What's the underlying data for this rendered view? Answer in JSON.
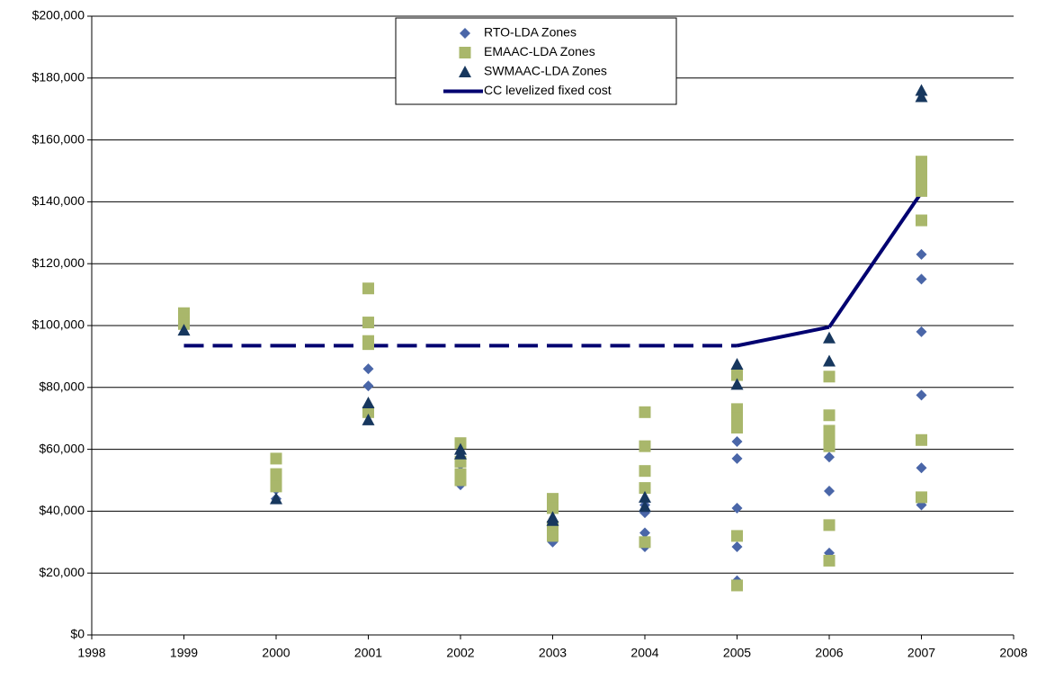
{
  "chart_data": {
    "type": "scatter",
    "xlim": [
      1998,
      2008
    ],
    "xticks": [
      1998,
      1999,
      2000,
      2001,
      2002,
      2003,
      2004,
      2005,
      2006,
      2007,
      2008
    ],
    "ylim": [
      0,
      200000
    ],
    "yticks": [
      {
        "value": 0,
        "label": "$0"
      },
      {
        "value": 20000,
        "label": "$20,000"
      },
      {
        "value": 40000,
        "label": "$40,000"
      },
      {
        "value": 60000,
        "label": "$60,000"
      },
      {
        "value": 80000,
        "label": "$80,000"
      },
      {
        "value": 100000,
        "label": "$100,000"
      },
      {
        "value": 120000,
        "label": "$120,000"
      },
      {
        "value": 140000,
        "label": "$140,000"
      },
      {
        "value": 160000,
        "label": "$160,000"
      },
      {
        "value": 180000,
        "label": "$180,000"
      },
      {
        "value": 200000,
        "label": "$200,000"
      }
    ],
    "grid": true,
    "legend": "top-center",
    "series": [
      {
        "name": "RTO-LDA Zones",
        "marker": "diamond",
        "color": "#4a66a8",
        "x": [
          1999,
          2000,
          2000,
          2001,
          2001,
          2001,
          2002,
          2002,
          2003,
          2003,
          2004,
          2004,
          2004,
          2004,
          2005,
          2005,
          2005,
          2005,
          2005,
          2006,
          2006,
          2006,
          2007,
          2007,
          2007,
          2007,
          2007,
          2007
        ],
        "values": [
          101000,
          47000,
          44000,
          86000,
          80500,
          72000,
          48500,
          55000,
          30000,
          33000,
          39500,
          33000,
          28500,
          42000,
          62500,
          57000,
          41000,
          28500,
          17500,
          57500,
          46500,
          26500,
          123000,
          115000,
          98000,
          77500,
          54000,
          42000
        ]
      },
      {
        "name": "EMAAC-LDA Zones",
        "marker": "square",
        "color": "#a9b76b",
        "x": [
          1999,
          1999,
          1999,
          2000,
          2000,
          2000,
          2000,
          2001,
          2001,
          2001,
          2001,
          2001,
          2002,
          2002,
          2002,
          2002,
          2003,
          2003,
          2003,
          2003,
          2004,
          2004,
          2004,
          2004,
          2004,
          2005,
          2005,
          2005,
          2005,
          2005,
          2005,
          2006,
          2006,
          2006,
          2006,
          2006,
          2006,
          2006,
          2007,
          2007,
          2007,
          2007,
          2007,
          2007,
          2007
        ],
        "values": [
          104000,
          102000,
          100500,
          57000,
          52000,
          50000,
          48000,
          112000,
          101000,
          95000,
          94000,
          72000,
          62000,
          56000,
          52000,
          50000,
          44000,
          41000,
          35000,
          32000,
          72000,
          61000,
          53000,
          47500,
          30000,
          84000,
          73000,
          70000,
          67000,
          32000,
          16000,
          83500,
          71000,
          66000,
          63000,
          61000,
          35500,
          24000,
          153000,
          150000,
          147000,
          143500,
          134000,
          63000,
          44500
        ]
      },
      {
        "name": "SWMAAC-LDA Zones",
        "marker": "triangle",
        "color": "#17375e",
        "x": [
          1999,
          2000,
          2001,
          2001,
          2002,
          2002,
          2003,
          2003,
          2004,
          2004,
          2005,
          2005,
          2006,
          2006,
          2007,
          2007
        ],
        "values": [
          98500,
          44000,
          75000,
          69500,
          60000,
          58500,
          38000,
          37000,
          44500,
          41500,
          87500,
          81000,
          96000,
          88500,
          176000,
          174000
        ]
      },
      {
        "name": "CC levelized fixed cost",
        "marker": "line",
        "color": "#000070",
        "x": [
          1999,
          2000,
          2001,
          2002,
          2003,
          2004,
          2005,
          2006,
          2007
        ],
        "values": [
          93500,
          93500,
          93500,
          93500,
          93500,
          93500,
          93500,
          99500,
          143000
        ],
        "segment_styles": [
          "dashed",
          "dashed",
          "dashed",
          "dashed",
          "dashed",
          "dashed",
          "solid",
          "solid"
        ]
      }
    ]
  }
}
